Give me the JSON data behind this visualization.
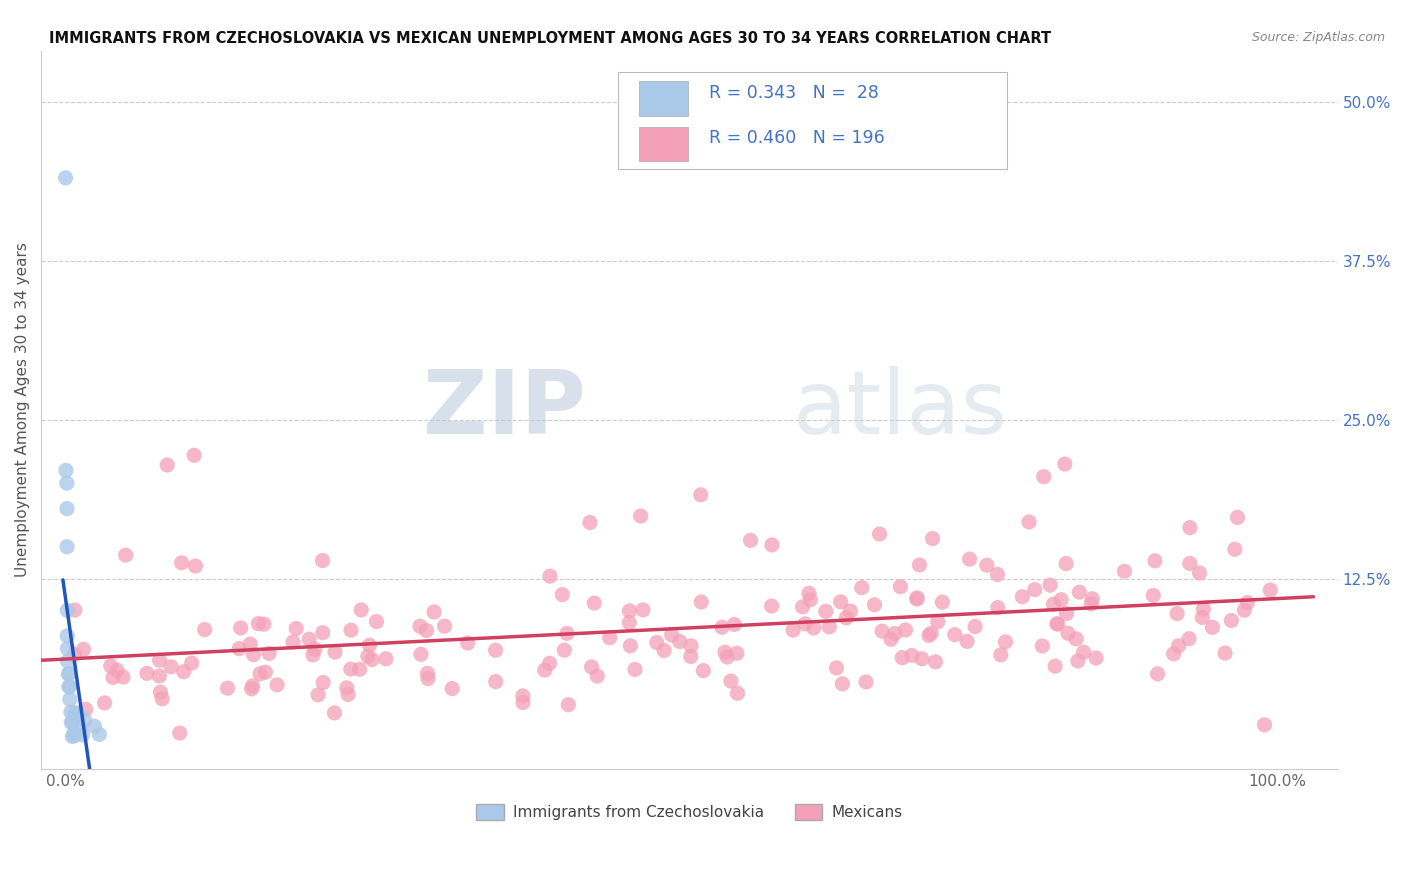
{
  "title": "IMMIGRANTS FROM CZECHOSLOVAKIA VS MEXICAN UNEMPLOYMENT AMONG AGES 30 TO 34 YEARS CORRELATION CHART",
  "source": "Source: ZipAtlas.com",
  "ylabel": "Unemployment Among Ages 30 to 34 years",
  "xlim": [
    -0.02,
    1.05
  ],
  "ylim": [
    -0.025,
    0.54
  ],
  "legend_R1": "0.343",
  "legend_N1": "28",
  "legend_R2": "0.460",
  "legend_N2": "196",
  "blue_color": "#aac8e8",
  "pink_color": "#f4a0b8",
  "blue_line_color": "#2255bb",
  "pink_line_color": "#d04060",
  "label_color": "#4472c4",
  "tick_color": "#4472c4",
  "watermark_zip": "ZIP",
  "watermark_atlas": "atlas",
  "blue_seed": 42,
  "pink_seed": 99
}
